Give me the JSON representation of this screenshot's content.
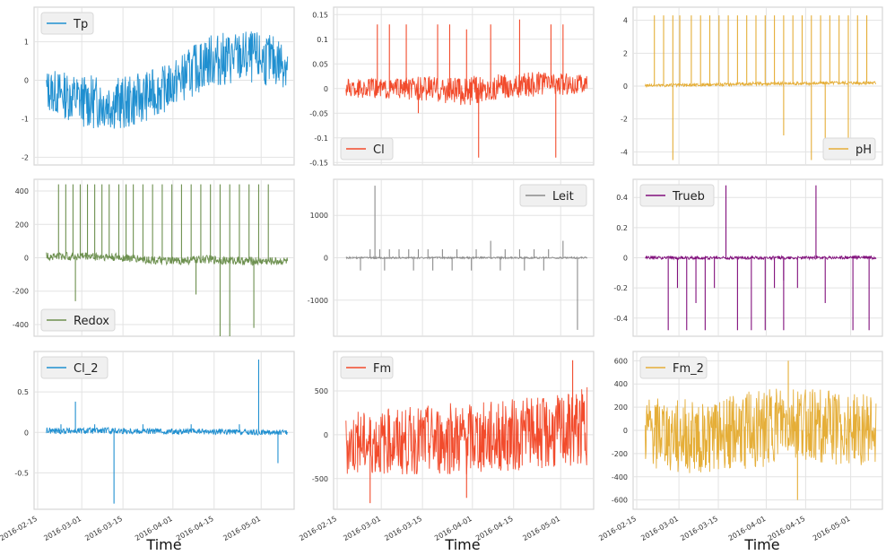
{
  "figure": {
    "xlabel": "Time"
  },
  "chart_data": [
    {
      "type": "line",
      "name": "Tp",
      "color": "#1f8fd0",
      "legend_pos": "top-left",
      "yticks": [
        -2,
        -1,
        0,
        1
      ],
      "ylim": [
        -2.2,
        1.9
      ],
      "x": [
        "2016-02-18",
        "2016-03-01",
        "2016-03-15",
        "2016-04-01",
        "2016-04-15",
        "2016-05-01",
        "2016-05-10"
      ],
      "y_base": [
        -0.25,
        -0.55,
        -0.6,
        -0.2,
        0.5,
        0.6,
        0.45
      ],
      "y_spread": [
        0.55,
        0.7,
        0.7,
        0.6,
        0.7,
        0.7,
        0.65
      ],
      "spikes": [],
      "show_xticks": false
    },
    {
      "type": "line",
      "name": "Cl",
      "color": "#f24b2c",
      "legend_pos": "bottom-left",
      "yticks": [
        -0.15,
        -0.1,
        -0.05,
        0.0,
        0.05,
        0.1,
        0.15
      ],
      "ylim": [
        -0.155,
        0.165
      ],
      "x": [
        "2016-02-18",
        "2016-03-01",
        "2016-03-15",
        "2016-04-01",
        "2016-04-15",
        "2016-05-01",
        "2016-05-10"
      ],
      "y_base": [
        0.0,
        0.0,
        0.0,
        -0.005,
        0.005,
        0.01,
        0.01
      ],
      "y_spread": [
        0.02,
        0.02,
        0.025,
        0.03,
        0.025,
        0.025,
        0.02
      ],
      "spikes": [
        [
          0.13,
          0.13
        ],
        [
          0.18,
          0.13
        ],
        [
          0.25,
          0.13
        ],
        [
          0.38,
          0.13
        ],
        [
          0.43,
          0.13
        ],
        [
          0.5,
          0.12
        ],
        [
          0.6,
          0.13
        ],
        [
          0.72,
          0.14
        ],
        [
          0.85,
          0.13
        ],
        [
          0.9,
          0.13
        ],
        [
          0.55,
          -0.14
        ],
        [
          0.87,
          -0.14
        ],
        [
          0.3,
          -0.05
        ]
      ],
      "show_xticks": false
    },
    {
      "type": "line",
      "name": "pH",
      "color": "#e5ae38",
      "legend_pos": "bottom-right",
      "yticks": [
        -4,
        -2,
        0,
        2,
        4
      ],
      "ylim": [
        -4.8,
        4.8
      ],
      "x": [
        "2016-02-18",
        "2016-03-01",
        "2016-03-15",
        "2016-04-01",
        "2016-04-15",
        "2016-05-01",
        "2016-05-10"
      ],
      "y_base": [
        0.05,
        0.05,
        0.1,
        0.15,
        0.15,
        0.2,
        0.2
      ],
      "y_spread": [
        0.1,
        0.1,
        0.1,
        0.1,
        0.1,
        0.1,
        0.1
      ],
      "spikes": [
        [
          0.04,
          4.3
        ],
        [
          0.08,
          4.3
        ],
        [
          0.12,
          4.3
        ],
        [
          0.15,
          4.3
        ],
        [
          0.2,
          4.3
        ],
        [
          0.24,
          4.3
        ],
        [
          0.28,
          4.3
        ],
        [
          0.32,
          4.3
        ],
        [
          0.36,
          4.3
        ],
        [
          0.4,
          4.3
        ],
        [
          0.44,
          4.3
        ],
        [
          0.48,
          4.3
        ],
        [
          0.52,
          4.3
        ],
        [
          0.56,
          4.3
        ],
        [
          0.6,
          4.3
        ],
        [
          0.64,
          4.3
        ],
        [
          0.68,
          4.3
        ],
        [
          0.72,
          4.3
        ],
        [
          0.76,
          4.3
        ],
        [
          0.8,
          4.3
        ],
        [
          0.84,
          4.3
        ],
        [
          0.88,
          4.3
        ],
        [
          0.92,
          4.3
        ],
        [
          0.96,
          4.3
        ],
        [
          0.12,
          -4.5
        ],
        [
          0.6,
          -3.0
        ],
        [
          0.72,
          -4.5
        ],
        [
          0.78,
          -4.5
        ],
        [
          0.88,
          -3.8
        ]
      ],
      "show_xticks": false
    },
    {
      "type": "line",
      "name": "Redox",
      "color": "#6d904f",
      "legend_pos": "bottom-left",
      "yticks": [
        -400,
        -200,
        0,
        200,
        400
      ],
      "ylim": [
        -470,
        470
      ],
      "x": [
        "2016-02-18",
        "2016-03-01",
        "2016-03-15",
        "2016-04-01",
        "2016-04-15",
        "2016-05-01",
        "2016-05-10"
      ],
      "y_base": [
        10,
        10,
        0,
        -20,
        -10,
        -20,
        -20
      ],
      "y_spread": [
        25,
        25,
        25,
        25,
        25,
        25,
        25
      ],
      "spikes": [
        [
          0.05,
          440
        ],
        [
          0.08,
          440
        ],
        [
          0.11,
          440
        ],
        [
          0.14,
          440
        ],
        [
          0.17,
          440
        ],
        [
          0.2,
          440
        ],
        [
          0.23,
          440
        ],
        [
          0.26,
          440
        ],
        [
          0.3,
          440
        ],
        [
          0.33,
          440
        ],
        [
          0.36,
          440
        ],
        [
          0.4,
          440
        ],
        [
          0.44,
          440
        ],
        [
          0.48,
          440
        ],
        [
          0.52,
          440
        ],
        [
          0.56,
          440
        ],
        [
          0.6,
          440
        ],
        [
          0.64,
          440
        ],
        [
          0.68,
          440
        ],
        [
          0.72,
          440
        ],
        [
          0.76,
          440
        ],
        [
          0.8,
          440
        ],
        [
          0.84,
          440
        ],
        [
          0.88,
          440
        ],
        [
          0.92,
          440
        ],
        [
          0.12,
          -260
        ],
        [
          0.62,
          -220
        ],
        [
          0.72,
          -470
        ],
        [
          0.76,
          -470
        ],
        [
          0.86,
          -420
        ]
      ],
      "show_xticks": false
    },
    {
      "type": "line",
      "name": "Leit",
      "color": "#8b8b8b",
      "legend_pos": "top-right",
      "yticks": [
        -1000,
        0,
        1000
      ],
      "ylim": [
        -1850,
        1850
      ],
      "x": [
        "2016-02-18",
        "2016-03-01",
        "2016-03-15",
        "2016-04-01",
        "2016-04-15",
        "2016-05-01",
        "2016-05-10"
      ],
      "y_base": [
        0,
        0,
        0,
        0,
        0,
        0,
        0
      ],
      "y_spread": [
        20,
        20,
        20,
        20,
        20,
        20,
        20
      ],
      "spikes": [
        [
          0.12,
          1700
        ],
        [
          0.1,
          200
        ],
        [
          0.14,
          200
        ],
        [
          0.18,
          200
        ],
        [
          0.22,
          200
        ],
        [
          0.26,
          200
        ],
        [
          0.3,
          200
        ],
        [
          0.34,
          200
        ],
        [
          0.4,
          200
        ],
        [
          0.46,
          200
        ],
        [
          0.54,
          200
        ],
        [
          0.6,
          400
        ],
        [
          0.66,
          200
        ],
        [
          0.72,
          200
        ],
        [
          0.78,
          200
        ],
        [
          0.84,
          200
        ],
        [
          0.9,
          400
        ],
        [
          0.06,
          -300
        ],
        [
          0.16,
          -300
        ],
        [
          0.28,
          -300
        ],
        [
          0.36,
          -300
        ],
        [
          0.44,
          -300
        ],
        [
          0.52,
          -300
        ],
        [
          0.64,
          -300
        ],
        [
          0.74,
          -300
        ],
        [
          0.82,
          -300
        ],
        [
          0.96,
          -1700
        ]
      ],
      "show_xticks": false
    },
    {
      "type": "line",
      "name": "Trueb",
      "color": "#810f7c",
      "legend_pos": "top-left",
      "yticks": [
        -0.4,
        -0.2,
        0.0,
        0.2,
        0.4
      ],
      "ylim": [
        -0.52,
        0.52
      ],
      "x": [
        "2016-02-18",
        "2016-03-01",
        "2016-03-15",
        "2016-04-01",
        "2016-04-15",
        "2016-05-01",
        "2016-05-10"
      ],
      "y_base": [
        0,
        0,
        0,
        0,
        0,
        0,
        0.005
      ],
      "y_spread": [
        0.01,
        0.01,
        0.01,
        0.01,
        0.01,
        0.01,
        0.015
      ],
      "spikes": [
        [
          0.35,
          0.48
        ],
        [
          0.74,
          0.48
        ],
        [
          0.1,
          -0.48
        ],
        [
          0.14,
          -0.2
        ],
        [
          0.18,
          -0.48
        ],
        [
          0.22,
          -0.3
        ],
        [
          0.26,
          -0.48
        ],
        [
          0.3,
          -0.2
        ],
        [
          0.4,
          -0.48
        ],
        [
          0.46,
          -0.48
        ],
        [
          0.52,
          -0.48
        ],
        [
          0.56,
          -0.2
        ],
        [
          0.6,
          -0.48
        ],
        [
          0.66,
          -0.2
        ],
        [
          0.78,
          -0.3
        ],
        [
          0.9,
          -0.48
        ],
        [
          0.97,
          -0.48
        ],
        [
          0.6,
          -0.15
        ]
      ],
      "show_xticks": false
    },
    {
      "type": "line",
      "name": "Cl_2",
      "color": "#1f8fd0",
      "legend_pos": "top-left",
      "yticks": [
        -0.5,
        0.0,
        0.5
      ],
      "ylim": [
        -0.95,
        1.0
      ],
      "x": [
        "2016-02-18",
        "2016-03-01",
        "2016-03-15",
        "2016-04-01",
        "2016-04-15",
        "2016-05-01",
        "2016-05-10"
      ],
      "y_base": [
        0.02,
        0.02,
        0.02,
        0.01,
        0.01,
        0.0,
        0.0
      ],
      "y_spread": [
        0.04,
        0.04,
        0.04,
        0.035,
        0.035,
        0.035,
        0.03
      ],
      "spikes": [
        [
          0.12,
          0.38
        ],
        [
          0.28,
          -0.88
        ],
        [
          0.88,
          0.9
        ],
        [
          0.96,
          -0.38
        ],
        [
          0.06,
          0.1
        ],
        [
          0.2,
          0.1
        ],
        [
          0.4,
          0.1
        ],
        [
          0.6,
          0.1
        ],
        [
          0.8,
          0.1
        ]
      ],
      "show_xticks": true
    },
    {
      "type": "line",
      "name": "Fm",
      "color": "#f24b2c",
      "legend_pos": "top-left",
      "yticks": [
        -500,
        0,
        500
      ],
      "ylim": [
        -850,
        950
      ],
      "x": [
        "2016-02-18",
        "2016-03-01",
        "2016-03-15",
        "2016-04-01",
        "2016-04-15",
        "2016-05-01",
        "2016-05-10"
      ],
      "y_base": [
        -100,
        -80,
        -50,
        -40,
        0,
        20,
        100
      ],
      "y_spread": [
        350,
        380,
        400,
        420,
        420,
        420,
        450
      ],
      "spikes": [
        [
          0.94,
          850
        ],
        [
          0.1,
          -780
        ],
        [
          0.5,
          -720
        ]
      ],
      "show_xticks": true
    },
    {
      "type": "line",
      "name": "Fm_2",
      "color": "#e5ae38",
      "legend_pos": "top-left",
      "yticks": [
        -600,
        -400,
        -200,
        0,
        200,
        400,
        600
      ],
      "ylim": [
        -680,
        680
      ],
      "x": [
        "2016-02-18",
        "2016-03-01",
        "2016-03-15",
        "2016-04-01",
        "2016-04-15",
        "2016-05-01",
        "2016-05-10"
      ],
      "y_base": [
        -20,
        -60,
        -40,
        20,
        60,
        20,
        0
      ],
      "y_spread": [
        300,
        330,
        320,
        340,
        330,
        320,
        300
      ],
      "spikes": [
        [
          0.62,
          600
        ],
        [
          0.66,
          -600
        ]
      ],
      "show_xticks": true
    }
  ],
  "xticks": [
    "2016-02-15",
    "2016-03-01",
    "2016-03-15",
    "2016-04-01",
    "2016-04-15",
    "2016-05-01"
  ]
}
